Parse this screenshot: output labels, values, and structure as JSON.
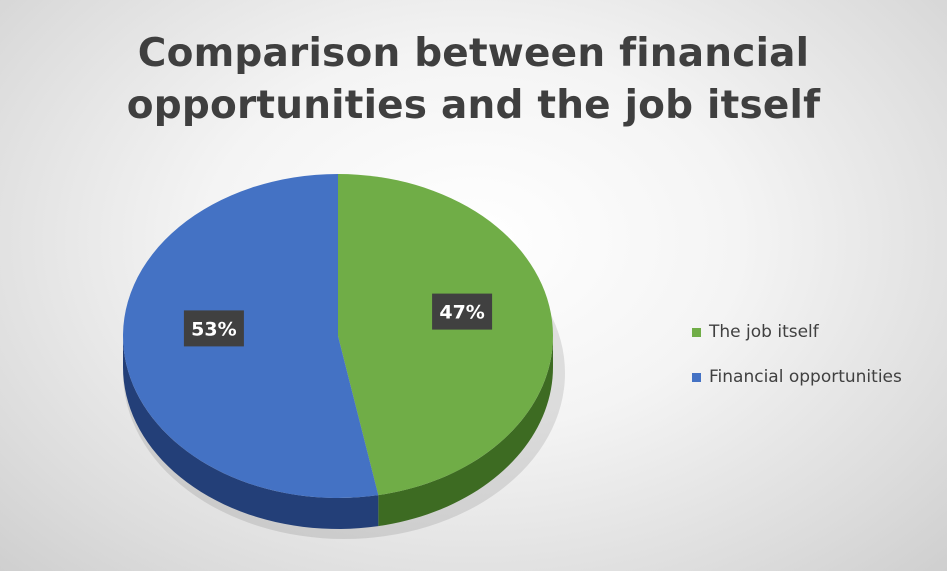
{
  "chart_data": {
    "type": "pie",
    "title_lines": [
      "Comparison between financial",
      "opportunities and the job itself"
    ],
    "slices": [
      {
        "label": "The job itself",
        "value": 47,
        "display": "47%",
        "color": "#70ad47",
        "side_color": "#3d6b22"
      },
      {
        "label": "Financial opportunities",
        "value": 53,
        "display": "53%",
        "color": "#4472c4",
        "side_color": "#233f78"
      }
    ],
    "legend_position": "right",
    "style": "3d-pie"
  }
}
